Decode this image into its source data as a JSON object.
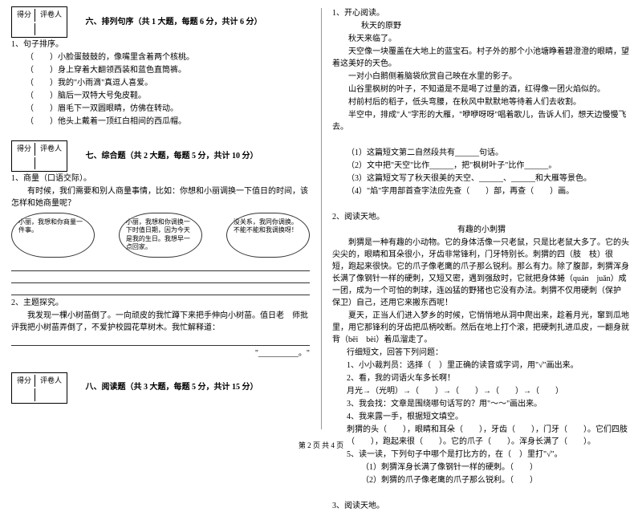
{
  "scoreBox": {
    "col1": "得分",
    "col2": "评卷人"
  },
  "section6": {
    "title": "六、排列句序（共 1 大题，每题 6 分，共计 6 分）",
    "q1": "1、句子排序。",
    "items": [
      "（　　）小脸蛋鼓鼓的，像嘴里含着两个核桃。",
      "（　　）身上穿着大翻领西装和蓝色直筒裤。",
      "（　　）我的\"小雨滴\"真逗人喜爱。",
      "（　　）脑后一双特大号兔皮鞋。",
      "（　　）眉毛下一双圆眼睛，仿佛在转动。",
      "（　　）他头上戴着一顶红白相间的西瓜帽。"
    ]
  },
  "section7": {
    "title": "七、综合题（共 2 大题，每题 5 分，共计 10 分）",
    "q1": "1、商量（口语交际）。",
    "q1text": "　　有时候，我们需要和别人商量事情，比如：你想和小丽调换一下值日的时间，该怎样和她商量呢？",
    "bubbles": [
      "小丽，我想和你商量一件事。",
      "小丽，我想和你调换一下时值日期，因为今天是我的生日。我想早一点回家。",
      "没关系，我同你调换。不能不能和我调换呀！"
    ],
    "q2": "2、主题探究。",
    "q2text": "　　我发现一棵小树苗倒了。一向顽皮的我忙蹲下来把手伸向小树苗。值日老　师批评我把小树苗弄倒了，不爱护校园花草树木。我忙解释道：",
    "q2end": "\"__________。\""
  },
  "section8": {
    "title": "八、阅读题（共 3 大题，每题 5 分，共计 15 分）",
    "q1": "1、开心阅读。",
    "poemTitle": "秋天的原野",
    "poem": [
      "秋天来临了。",
      "天空像一块覆盖在大地上的蓝宝石。村子外的那个小池塘睁着碧澄澄的眼睛，望着这美好的天色。",
      "一对小白鹅侧着脑袋欣赏自己映在水里的影子。",
      "山谷里枫树的叶子，不知道是不是喝了过量的酒，红得像一团火焰似的。",
      "村前村后的稻子，低头弯腰，在秋风中默默地等待着人们去收割。",
      "半空中，排成\"人\"字形的大雁，\"咿咿呀呀\"唱着歌儿，告诉人们，想天边慢慢飞去。"
    ],
    "sub": [
      "（1）这篇短文第二自然段共有______句话。",
      "（2）文中把\"天空\"比作______，把\"枫树叶子\"比作______。",
      "（3）这篇短文写了秋天很美的天空、______、______和大雁等景色。",
      "（4）\"焰\"字用部首查字法应先查（　　）部，再查（　　）画。"
    ],
    "q2": "2、阅读天地。",
    "readTitle": "有趣的小刺猬",
    "read": [
      "刺猬是一种有趣的小动物。它的身体活像一只老鼠，只是比老鼠大多了。它的头尖尖的，眼睛和耳朵很小，牙齿非常锋利，门牙特别长。刺猬的四（肢　枝）很　短，跑起来很快。它的爪子像老鹰的爪子那么锐利。那么有力。除了腹部，刺猬浑身长满了像钢针一样的硬刺，又短又密，遇到强敌时，它就把身体蜷（quán　juǎn）成一团，成为一个可怕的刺球，连凶猛的野猪也它没有办法。刺猬不仅用硬刺（保护　保卫）自己，还用它来搬东西呢！",
      "夏天，正当人们进入梦乡的时候，它悄悄地从洞中爬出来，趁着月光，窜到瓜地里，用它那锋利的牙齿把瓜柄咬断。然后在地上打个滚，把硬刺扎进瓜皮，一翻身就背（bēi　bèi）着瓜溜走了。"
    ],
    "subQ": [
      "行细短文，回答下列问题：",
      "1、小小裁判员：选择（　）里正确的读音或字词，用\"√\"画出来。",
      "2、看，我的词语火车多长啊！",
      "月光→（光明）→（　　）→（　　）→（　　）→（　　）",
      "3、我会找：文章是围绕哪句话写的？用\"～～\"画出来。",
      "4、我来露一手，根据短文填空。",
      "刺猬的头（　　），眼睛和耳朵（　　），牙齿（　　），门牙（　　）。它们四肢（　　），跑起来很（　　）。它的爪子（　　）。浑身长满了（　　）。",
      "5、读一读，下列句子中哪个是打比方的，在（　）里打\"√\"。",
      "（1）刺猬浑身长满了像钢针一样的硬刺。（　　）",
      "（2）刺猬的爪子像老鹰的爪子那么锐利。（　　）"
    ],
    "q3": "3、阅读天地。"
  },
  "footer": "第 2 页 共 4 页"
}
